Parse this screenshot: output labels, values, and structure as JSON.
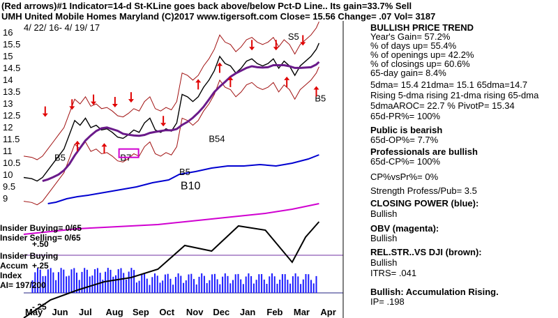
{
  "header": {
    "line1": "(Red arrows)#1 Indicator=14-d St-KLine goes back above/below Pct-D Line.. Its gain=33.7% Sell",
    "line2": "UMH   United Mobile Homes Maryland  (C)2017 www.tigersoft.com      Close=  15.56  Change= .07 Vol= 3187",
    "date_range": "4/ 22/ 16- 4/ 19/ 17"
  },
  "right_panel": [
    {
      "text": "BULLISH PRICE TREND",
      "bold": true
    },
    {
      "text": "     Year's Gain= 57.2%",
      "bold": false
    },
    {
      "text": "     % of days up= 55.4%",
      "bold": false
    },
    {
      "text": "   % of openings up= 42.2%",
      "bold": false
    },
    {
      "text": "   % of closings up= 60.6%",
      "bold": false
    },
    {
      "text": "    65-day gain= 8.4%",
      "bold": false
    },
    {
      "text": "5dma= 15.4 21dma= 15.1 65dma=14.7",
      "bold": false
    },
    {
      "text": "Rising 5-dma rising 21-dma rising 65-dma",
      "bold": false
    },
    {
      "text": "5dmaAROC= 22.7 %  PivotP= 15.34",
      "bold": false
    },
    {
      "text": "     65d-PR%= 100%",
      "bold": false
    },
    {
      "text": "Public is bearish",
      "bold": true
    },
    {
      "text": "     65d-OP%= 7.7%",
      "bold": false
    },
    {
      "text": "Professionals are bullish",
      "bold": true
    },
    {
      "text": "     65d-CP%= 100%",
      "bold": false
    },
    {
      "text": "CP%vsPr%=  0%",
      "bold": false
    },
    {
      "text": "Strength Profess/Pub= 3.5",
      "bold": false
    },
    {
      "text": "CLOSING POWER (blue):",
      "bold": true
    },
    {
      "text": "Bullish",
      "bold": false
    },
    {
      "text": "OBV (magenta):",
      "bold": true
    },
    {
      "text": "Bullish",
      "bold": false
    },
    {
      "text": "REL.STR..VS DJI (brown):",
      "bold": true
    },
    {
      "text": "Bullish",
      "bold": false
    },
    {
      "text": "ITRS= .041",
      "bold": false
    },
    {
      "text": "Bullish: Accumulation Rising.",
      "bold": true
    },
    {
      "text": "     IP=  .198",
      "bold": false
    }
  ],
  "indicator_labels": {
    "insider_buying": "Insider Buying= 0/65",
    "insider_selling": "Insider Selling= 0/65",
    "ip_plus50": "+.50",
    "insider_buying2": "Insider Buying",
    "accum": "Accum",
    "ip_plus25": "+.25",
    "index": "Index",
    "ai": "AI= 197/200",
    "ip_minus25": "-.25"
  },
  "colors": {
    "price": "#000000",
    "bands": "#a01010",
    "ma21": "#d02020",
    "ma65": "#6a1a8a",
    "closing_power": "#0000d0",
    "obv": "#d000d0",
    "rel_strength": "#8b4513",
    "accumulation": "#1a1aff",
    "arrows": "#e00000",
    "zero_line": "#d000d0"
  },
  "chart_data": {
    "type": "line",
    "ticker": "UMH",
    "x_months": [
      "May",
      "Jun",
      "Jul",
      "Aug",
      "Sep",
      "Oct",
      "Nov",
      "Dec",
      "Jan",
      "Feb",
      "Mar",
      "Apr"
    ],
    "y_ticks": [
      16,
      15.5,
      15,
      14.5,
      14,
      13.5,
      13,
      12.5,
      12,
      11.5,
      11,
      10.5,
      10,
      9.5,
      9
    ],
    "ylim": [
      8.8,
      16.2
    ],
    "price_series": {
      "name": "Close",
      "points": [
        [
          0.0,
          9.9
        ],
        [
          0.3,
          9.85
        ],
        [
          0.5,
          9.75
        ],
        [
          0.7,
          9.9
        ],
        [
          0.9,
          10.2
        ],
        [
          1.1,
          10.5
        ],
        [
          1.3,
          10.8
        ],
        [
          1.5,
          11.1
        ],
        [
          1.7,
          11.7
        ],
        [
          1.9,
          12.3
        ],
        [
          2.1,
          12.1
        ],
        [
          2.3,
          12.4
        ],
        [
          2.5,
          12.0
        ],
        [
          2.7,
          12.1
        ],
        [
          2.9,
          11.9
        ],
        [
          3.1,
          11.95
        ],
        [
          3.3,
          11.8
        ],
        [
          3.5,
          11.6
        ],
        [
          3.7,
          11.55
        ],
        [
          3.9,
          11.7
        ],
        [
          4.1,
          11.9
        ],
        [
          4.3,
          11.8
        ],
        [
          4.5,
          12.2
        ],
        [
          4.7,
          12.4
        ],
        [
          4.9,
          11.9
        ],
        [
          5.1,
          11.8
        ],
        [
          5.3,
          11.95
        ],
        [
          5.5,
          11.85
        ],
        [
          5.7,
          12.2
        ],
        [
          5.9,
          13.4
        ],
        [
          6.1,
          13.3
        ],
        [
          6.3,
          13.1
        ],
        [
          6.5,
          13.3
        ],
        [
          6.7,
          13.7
        ],
        [
          6.9,
          14.0
        ],
        [
          7.1,
          14.4
        ],
        [
          7.3,
          15.0
        ],
        [
          7.5,
          14.7
        ],
        [
          7.7,
          14.6
        ],
        [
          7.9,
          14.3
        ],
        [
          8.1,
          14.5
        ],
        [
          8.3,
          14.8
        ],
        [
          8.5,
          14.9
        ],
        [
          8.7,
          14.7
        ],
        [
          8.9,
          14.6
        ],
        [
          9.1,
          14.7
        ],
        [
          9.3,
          14.9
        ],
        [
          9.5,
          14.5
        ],
        [
          9.7,
          14.8
        ],
        [
          9.9,
          14.6
        ],
        [
          10.1,
          14.2
        ],
        [
          10.3,
          14.6
        ],
        [
          10.5,
          14.8
        ],
        [
          10.7,
          15.0
        ],
        [
          10.9,
          15.3
        ],
        [
          11.0,
          15.56
        ]
      ]
    },
    "series": [
      {
        "name": "Closing Power",
        "values": "blue line rising through the year"
      },
      {
        "name": "OBV",
        "values": "magenta line rising through the year"
      },
      {
        "name": "Accumulation Index",
        "values": "blue histogram"
      },
      {
        "name": "Relative Strength vs DJI",
        "values": "brown line"
      }
    ],
    "annotations": [
      {
        "label": "B5",
        "x": 1.3,
        "y": 10.6
      },
      {
        "label": "B7",
        "x": 3.75,
        "y": 10.6
      },
      {
        "label": "B5",
        "x": 5.95,
        "y": 10.0
      },
      {
        "label": "B10",
        "x": 6.0,
        "y": 9.4
      },
      {
        "label": "B54",
        "x": 7.05,
        "y": 11.4
      },
      {
        "label": "S5",
        "x": 10.0,
        "y": 15.7
      },
      {
        "label": "B5",
        "x": 11.0,
        "y": 13.1
      }
    ],
    "grid": false,
    "legend": "none"
  }
}
